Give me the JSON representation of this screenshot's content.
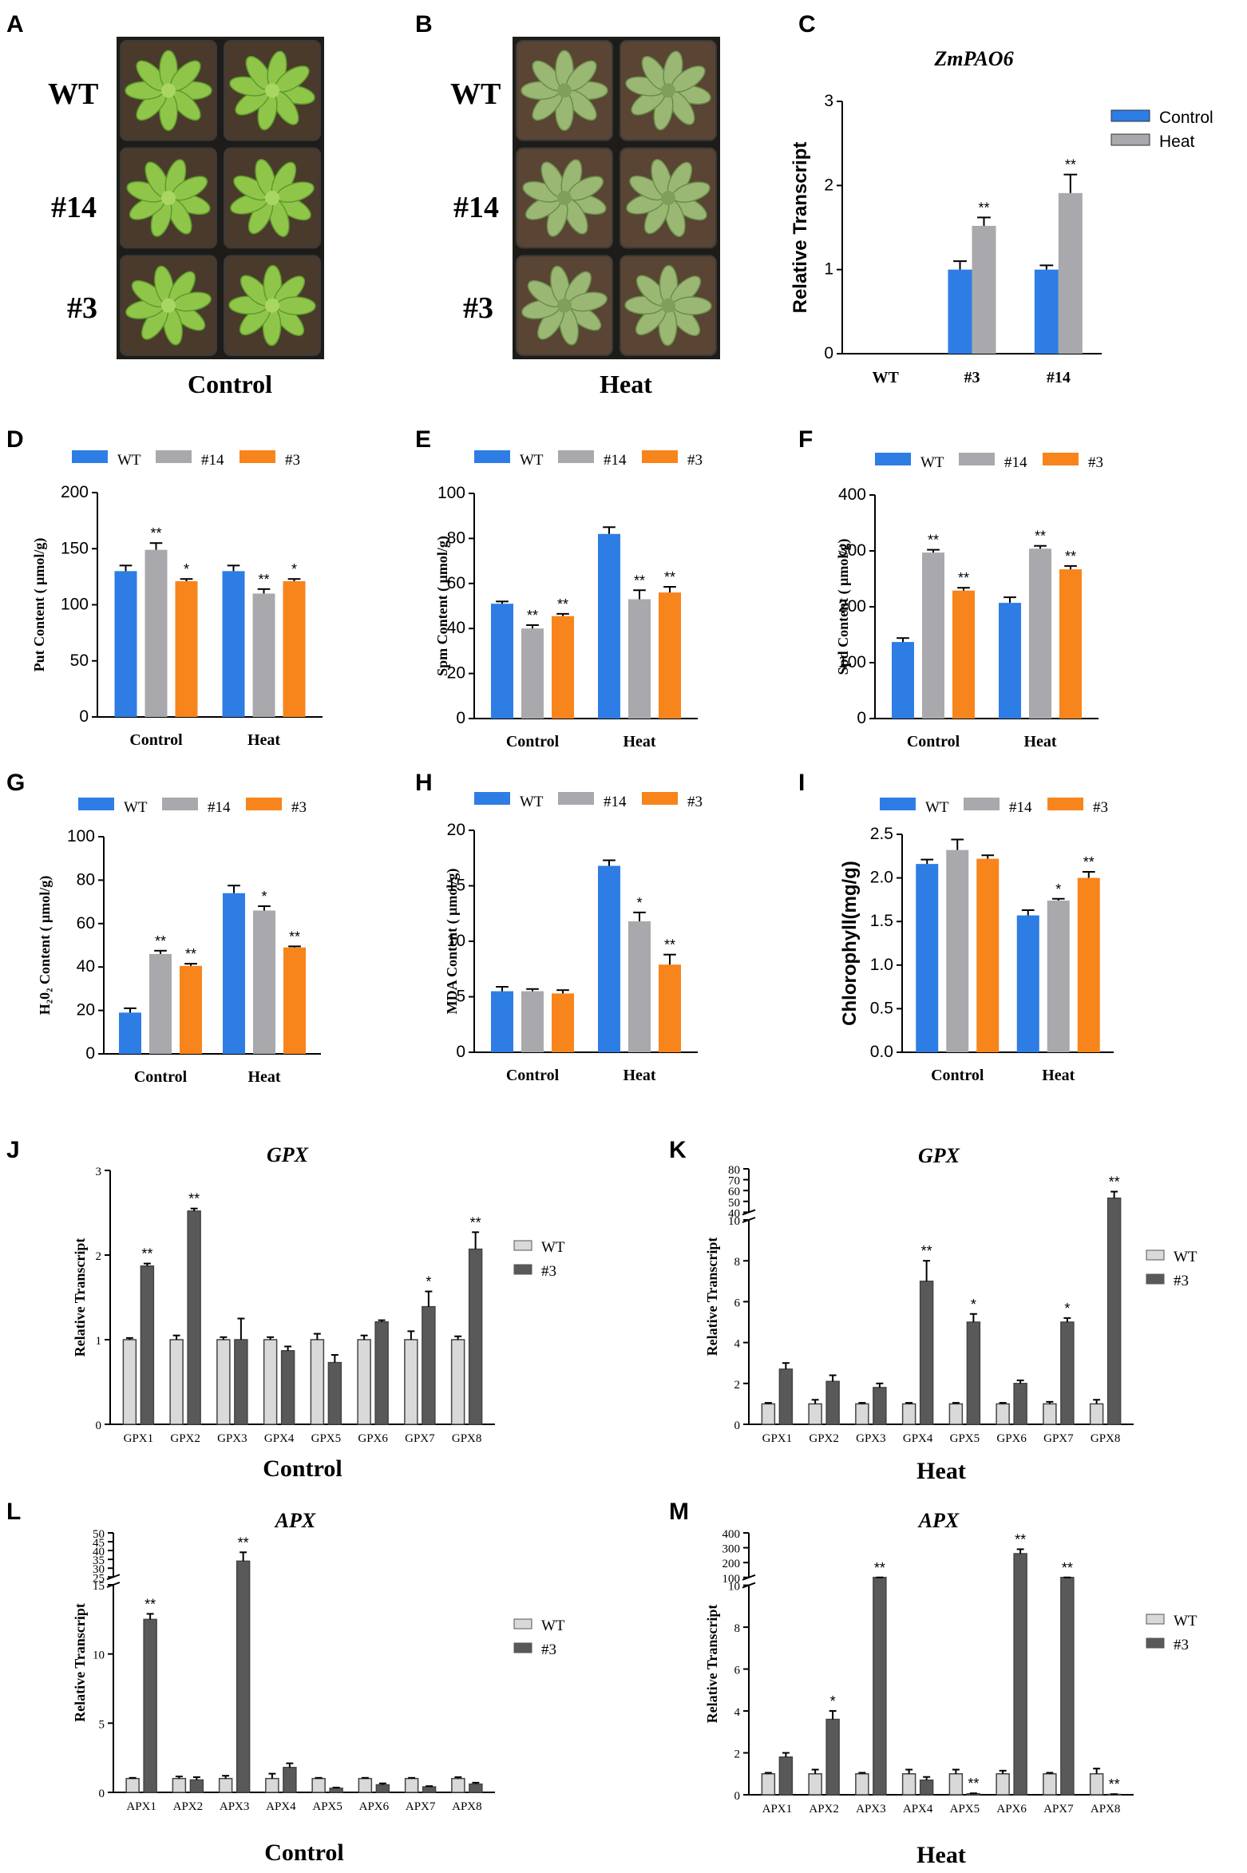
{
  "panel_letters": [
    "A",
    "B",
    "C",
    "D",
    "E",
    "F",
    "G",
    "H",
    "I",
    "J",
    "K",
    "L",
    "M"
  ],
  "colors": {
    "wt": "#2e7de5",
    "l14": "#a9a9ad",
    "l3": "#f8841c",
    "light": "#d9d9d9",
    "dark": "#595959",
    "pot": "#2b2a26",
    "soil": "#4a3a2c",
    "leaf": "#8fc64a",
    "leafHeat": "#9ab873"
  },
  "photo_A": {
    "rows": [
      "WT",
      "#14",
      "#3"
    ],
    "caption": "Control"
  },
  "photo_B": {
    "rows": [
      "WT",
      "#14",
      "#3"
    ],
    "caption": "Heat"
  },
  "chart_data": [
    {
      "id": "C",
      "type": "bar",
      "title": "ZmPAO6",
      "ylabel": "Relative Transcript",
      "categories": [
        "WT",
        "#3",
        "#14"
      ],
      "ylim": [
        0,
        3
      ],
      "yticks": [
        0,
        1,
        2,
        3
      ],
      "series": [
        {
          "name": "Control",
          "color_key": "wt",
          "values": [
            0,
            1.0,
            1.0
          ],
          "errors": [
            0,
            0.1,
            0.05
          ],
          "sig": [
            "",
            "",
            ""
          ]
        },
        {
          "name": "Heat",
          "color_key": "l14",
          "values": [
            0,
            1.52,
            1.91
          ],
          "errors": [
            0,
            0.1,
            0.22
          ],
          "sig": [
            "",
            "**",
            "**"
          ]
        }
      ]
    },
    {
      "id": "D",
      "type": "bar",
      "ylabel": "Put Content ( μmol/g)",
      "categories": [
        "Control",
        "Heat"
      ],
      "ylim": [
        0,
        200
      ],
      "yticks": [
        0,
        50,
        100,
        150,
        200
      ],
      "series": [
        {
          "name": "WT",
          "color_key": "wt",
          "values": [
            130,
            130
          ],
          "errors": [
            5,
            5
          ],
          "sig": [
            "",
            ""
          ]
        },
        {
          "name": "#14",
          "color_key": "l14",
          "values": [
            149,
            110
          ],
          "errors": [
            6,
            4
          ],
          "sig": [
            "**",
            "**"
          ]
        },
        {
          "name": "#3",
          "color_key": "l3",
          "values": [
            121,
            121
          ],
          "errors": [
            2,
            2
          ],
          "sig": [
            "*",
            "*"
          ]
        }
      ]
    },
    {
      "id": "E",
      "type": "bar",
      "ylabel": "Spm Content ( μmol/g)",
      "categories": [
        "Control",
        "Heat"
      ],
      "ylim": [
        0,
        100
      ],
      "yticks": [
        0,
        20,
        40,
        60,
        80,
        100
      ],
      "series": [
        {
          "name": "WT",
          "color_key": "wt",
          "values": [
            51,
            82
          ],
          "errors": [
            1,
            3
          ],
          "sig": [
            "",
            ""
          ]
        },
        {
          "name": "#14",
          "color_key": "l14",
          "values": [
            40,
            53
          ],
          "errors": [
            1.5,
            4
          ],
          "sig": [
            "**",
            "**"
          ]
        },
        {
          "name": "#3",
          "color_key": "l3",
          "values": [
            45.5,
            56
          ],
          "errors": [
            1,
            2.5
          ],
          "sig": [
            "**",
            "**"
          ]
        }
      ]
    },
    {
      "id": "F",
      "type": "bar",
      "ylabel": "Spd Content ( μmol/g)",
      "categories": [
        "Control",
        "Heat"
      ],
      "ylim": [
        0,
        400
      ],
      "yticks": [
        0,
        100,
        200,
        300,
        400
      ],
      "series": [
        {
          "name": "WT",
          "color_key": "wt",
          "values": [
            137,
            207
          ],
          "errors": [
            7,
            10
          ],
          "sig": [
            "",
            ""
          ]
        },
        {
          "name": "#14",
          "color_key": "l14",
          "values": [
            297,
            304
          ],
          "errors": [
            5,
            5
          ],
          "sig": [
            "**",
            "**"
          ]
        },
        {
          "name": "#3",
          "color_key": "l3",
          "values": [
            229,
            267
          ],
          "errors": [
            5,
            6
          ],
          "sig": [
            "**",
            "**"
          ]
        }
      ]
    },
    {
      "id": "G",
      "type": "bar",
      "ylabel": "H₂0₂ Content ( μmol/g)",
      "categories": [
        "Control",
        "Heat"
      ],
      "ylim": [
        0,
        100
      ],
      "yticks": [
        0,
        20,
        40,
        60,
        80,
        100
      ],
      "series": [
        {
          "name": "WT",
          "color_key": "wt",
          "values": [
            19,
            74
          ],
          "errors": [
            2,
            3.5
          ],
          "sig": [
            "",
            ""
          ]
        },
        {
          "name": "#14",
          "color_key": "l14",
          "values": [
            46,
            66
          ],
          "errors": [
            1.5,
            2
          ],
          "sig": [
            "**",
            "*"
          ]
        },
        {
          "name": "#3",
          "color_key": "l3",
          "values": [
            40.5,
            49
          ],
          "errors": [
            1,
            0.5
          ],
          "sig": [
            "**",
            "**"
          ]
        }
      ]
    },
    {
      "id": "H",
      "type": "bar",
      "ylabel": "MDA Content ( μmol/g)",
      "categories": [
        "Control",
        "Heat"
      ],
      "ylim": [
        0,
        20
      ],
      "yticks": [
        0,
        5,
        10,
        15,
        20
      ],
      "series": [
        {
          "name": "WT",
          "color_key": "wt",
          "values": [
            5.5,
            16.8
          ],
          "errors": [
            0.4,
            0.5
          ],
          "sig": [
            "",
            ""
          ]
        },
        {
          "name": "#14",
          "color_key": "l14",
          "values": [
            5.5,
            11.8
          ],
          "errors": [
            0.2,
            0.8
          ],
          "sig": [
            "",
            "*"
          ]
        },
        {
          "name": "#3",
          "color_key": "l3",
          "values": [
            5.3,
            7.9
          ],
          "errors": [
            0.3,
            0.9
          ],
          "sig": [
            "",
            "**"
          ]
        }
      ]
    },
    {
      "id": "I",
      "type": "bar",
      "ylabel": "Chlorophyll(mg/g)",
      "categories": [
        "Control",
        "Heat"
      ],
      "ylim": [
        0,
        2.5
      ],
      "yticks": [
        "0.0",
        "0.5",
        "1.0",
        "1.5",
        "2.0",
        "2.5"
      ],
      "series": [
        {
          "name": "WT",
          "color_key": "wt",
          "values": [
            2.16,
            1.57
          ],
          "errors": [
            0.05,
            0.06
          ],
          "sig": [
            "",
            ""
          ]
        },
        {
          "name": "#14",
          "color_key": "l14",
          "values": [
            2.32,
            1.74
          ],
          "errors": [
            0.12,
            0.02
          ],
          "sig": [
            "",
            "*"
          ]
        },
        {
          "name": "#3",
          "color_key": "l3",
          "values": [
            2.22,
            2.0
          ],
          "errors": [
            0.04,
            0.07
          ],
          "sig": [
            "",
            "**"
          ]
        }
      ]
    },
    {
      "id": "J",
      "type": "bar",
      "title": "GPX",
      "ylabel": "Relative Transcript",
      "xlabel": "Control",
      "categories": [
        "GPX1",
        "GPX2",
        "GPX3",
        "GPX4",
        "GPX5",
        "GPX6",
        "GPX7",
        "GPX8"
      ],
      "ylim": [
        0,
        3
      ],
      "yticks": [
        0,
        1,
        2,
        3
      ],
      "series": [
        {
          "name": "WT",
          "color_key": "light",
          "values": [
            1,
            1,
            1,
            1,
            1,
            1,
            1,
            1
          ],
          "errors": [
            0.02,
            0.05,
            0.03,
            0.03,
            0.07,
            0.05,
            0.1,
            0.04
          ],
          "sig": [
            "",
            "",
            "",
            "",
            "",
            "",
            "",
            ""
          ]
        },
        {
          "name": "#3",
          "color_key": "dark",
          "values": [
            1.87,
            2.52,
            1.0,
            0.87,
            0.73,
            1.21,
            1.39,
            2.07
          ],
          "errors": [
            0.03,
            0.03,
            0.25,
            0.05,
            0.09,
            0.02,
            0.18,
            0.2
          ],
          "sig": [
            "**",
            "**",
            "",
            "",
            "",
            "",
            "*",
            "**"
          ]
        }
      ]
    },
    {
      "id": "K",
      "type": "bar",
      "title": "GPX",
      "ylabel": "Relative Transcript",
      "xlabel": "Heat",
      "categories": [
        "GPX1",
        "GPX2",
        "GPX3",
        "GPX4",
        "GPX5",
        "GPX6",
        "GPX7",
        "GPX8"
      ],
      "broken_axis": {
        "lower": [
          0,
          10
        ],
        "upper": [
          40,
          80
        ]
      },
      "yticks": [
        0,
        2,
        4,
        6,
        8,
        10,
        40,
        50,
        60,
        70,
        80
      ],
      "series": [
        {
          "name": "WT",
          "color_key": "light",
          "values": [
            1,
            1,
            1,
            1,
            1,
            1,
            1,
            1
          ],
          "errors": [
            0.05,
            0.2,
            0.05,
            0.05,
            0.05,
            0.05,
            0.1,
            0.2
          ],
          "sig": [
            "",
            "",
            "",
            "",
            "",
            "",
            "",
            ""
          ]
        },
        {
          "name": "#3",
          "color_key": "dark",
          "values": [
            2.7,
            2.1,
            1.8,
            7.0,
            5.0,
            2.0,
            5.0,
            53
          ],
          "errors": [
            0.3,
            0.3,
            0.2,
            1.0,
            0.4,
            0.15,
            0.2,
            6
          ],
          "sig": [
            "",
            "",
            "",
            "**",
            "*",
            "",
            "*",
            "**"
          ]
        }
      ]
    },
    {
      "id": "L",
      "type": "bar",
      "title": "APX",
      "ylabel": "Relative Transcript",
      "xlabel": "Control",
      "categories": [
        "APX1",
        "APX2",
        "APX3",
        "APX4",
        "APX5",
        "APX6",
        "APX7",
        "APX8"
      ],
      "broken_axis": {
        "lower": [
          0,
          15
        ],
        "upper": [
          25,
          50
        ]
      },
      "yticks": [
        0,
        5,
        10,
        15,
        25,
        30,
        35,
        40,
        45,
        50
      ],
      "series": [
        {
          "name": "WT",
          "color_key": "light",
          "values": [
            1,
            1,
            1,
            1,
            1,
            1,
            1,
            1
          ],
          "errors": [
            0.05,
            0.15,
            0.2,
            0.35,
            0.05,
            0.05,
            0.05,
            0.1
          ],
          "sig": [
            "",
            "",
            "",
            "",
            "",
            "",
            "",
            ""
          ]
        },
        {
          "name": "#3",
          "color_key": "dark",
          "values": [
            12.5,
            0.9,
            34,
            1.8,
            0.3,
            0.55,
            0.4,
            0.6
          ],
          "errors": [
            0.4,
            0.2,
            5,
            0.3,
            0.05,
            0.1,
            0.05,
            0.1
          ],
          "sig": [
            "**",
            "",
            "**",
            "",
            "",
            "",
            "",
            ""
          ]
        }
      ]
    },
    {
      "id": "M",
      "type": "bar",
      "title": "APX",
      "ylabel": "Relative Transcript",
      "xlabel": "Heat",
      "categories": [
        "APX1",
        "APX2",
        "APX3",
        "APX4",
        "APX5",
        "APX6",
        "APX7",
        "APX8"
      ],
      "broken_axis": {
        "lower": [
          0,
          10
        ],
        "upper": [
          100,
          400
        ]
      },
      "yticks": [
        0,
        2,
        4,
        6,
        8,
        10,
        100,
        200,
        300,
        400
      ],
      "series": [
        {
          "name": "WT",
          "color_key": "light",
          "values": [
            1,
            1,
            1,
            1,
            1,
            1,
            1,
            1
          ],
          "errors": [
            0.05,
            0.2,
            0.05,
            0.2,
            0.2,
            0.15,
            0.05,
            0.25
          ],
          "sig": [
            "",
            "",
            "",
            "",
            "",
            "",
            "",
            ""
          ]
        },
        {
          "name": "#3",
          "color_key": "dark",
          "values": [
            1.8,
            3.6,
            62,
            0.7,
            0.05,
            260,
            60,
            0.02
          ],
          "errors": [
            0.2,
            0.4,
            15,
            0.15,
            0.02,
            30,
            12,
            0.01
          ],
          "sig": [
            "",
            "*",
            "**",
            "",
            "**",
            "**",
            "**",
            "**"
          ]
        }
      ]
    }
  ]
}
